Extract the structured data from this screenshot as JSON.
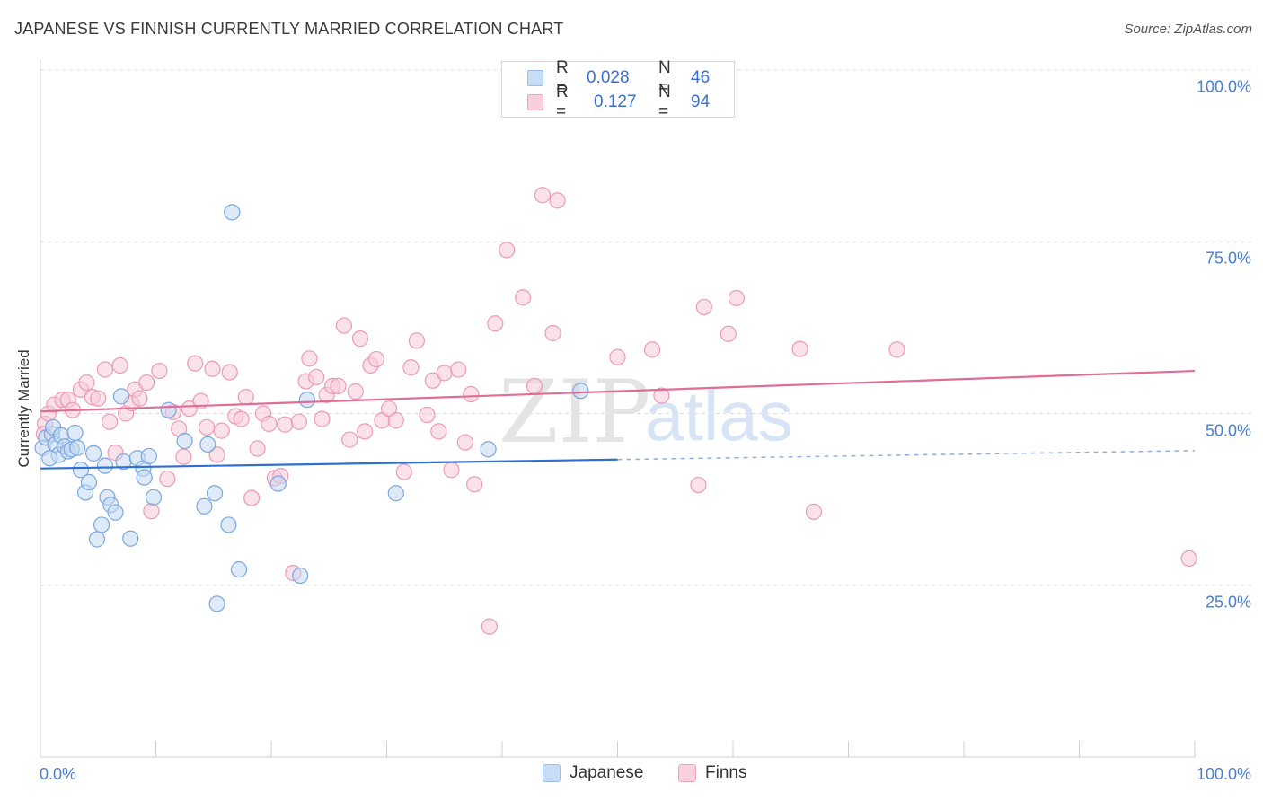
{
  "chart_data": {
    "type": "scatter",
    "title": "JAPANESE VS FINNISH CURRENTLY MARRIED CORRELATION CHART",
    "source": "Source: ZipAtlas.com",
    "xlabel": "",
    "ylabel": "Currently Married",
    "xlim": [
      0,
      100
    ],
    "ylim": [
      0,
      100
    ],
    "x_tick_labels": [
      "0.0%",
      "100.0%"
    ],
    "y_tick_labels": [
      {
        "value": 100,
        "label": "100.0%"
      },
      {
        "value": 75,
        "label": "75.0%"
      },
      {
        "value": 50,
        "label": "50.0%"
      },
      {
        "value": 25,
        "label": "25.0%"
      }
    ],
    "grid": true,
    "watermark": "ZIPatlas",
    "legend": {
      "placement": "top-center",
      "rows": [
        {
          "r_label": "R =",
          "r_value": "0.028",
          "n_label": "N =",
          "n_value": "46",
          "color": "#9bbde8",
          "fill": "#c7dcf5"
        },
        {
          "r_label": "R =",
          "r_value": "0.127",
          "n_label": "N =",
          "n_value": "94",
          "color": "#f0a3bc",
          "fill": "#f9cfdc"
        }
      ]
    },
    "series": [
      {
        "name": "Japanese",
        "color": "#7aa7e0",
        "fill": "#c3d8f3",
        "trend_color": "#2f6fd0",
        "trend": {
          "x0": 0,
          "y0": 42.0,
          "x1": 50,
          "y1": 43.3,
          "dash_to_x": 100,
          "dash_to_y": 44.6
        },
        "points": [
          [
            0.2,
            45.0
          ],
          [
            0.5,
            46.5
          ],
          [
            1.0,
            47.0
          ],
          [
            1.1,
            48.0
          ],
          [
            1.3,
            45.5
          ],
          [
            1.6,
            44.0
          ],
          [
            1.8,
            46.8
          ],
          [
            2.1,
            45.2
          ],
          [
            2.4,
            44.5
          ],
          [
            2.7,
            44.8
          ],
          [
            3.0,
            47.2
          ],
          [
            3.2,
            45.0
          ],
          [
            3.5,
            41.8
          ],
          [
            3.9,
            38.5
          ],
          [
            4.2,
            40.0
          ],
          [
            4.6,
            44.2
          ],
          [
            4.9,
            31.7
          ],
          [
            5.3,
            33.8
          ],
          [
            5.6,
            42.4
          ],
          [
            5.8,
            37.8
          ],
          [
            6.1,
            36.7
          ],
          [
            6.5,
            35.6
          ],
          [
            7.0,
            52.5
          ],
          [
            7.2,
            43.0
          ],
          [
            7.8,
            31.8
          ],
          [
            8.4,
            43.5
          ],
          [
            8.9,
            42.0
          ],
          [
            9.0,
            40.7
          ],
          [
            9.4,
            43.8
          ],
          [
            9.8,
            37.8
          ],
          [
            11.1,
            50.5
          ],
          [
            12.5,
            46.0
          ],
          [
            14.2,
            36.5
          ],
          [
            14.5,
            45.5
          ],
          [
            15.1,
            38.4
          ],
          [
            15.3,
            22.3
          ],
          [
            16.6,
            79.3
          ],
          [
            16.3,
            33.8
          ],
          [
            17.2,
            27.3
          ],
          [
            20.6,
            39.8
          ],
          [
            22.5,
            26.4
          ],
          [
            23.1,
            52.0
          ],
          [
            30.8,
            38.4
          ],
          [
            38.8,
            44.8
          ],
          [
            46.8,
            53.3
          ],
          [
            0.8,
            43.5
          ]
        ]
      },
      {
        "name": "Finns",
        "color": "#ec9ab5",
        "fill": "#f8cad9",
        "trend_color": "#e06d98",
        "trend": {
          "x0": 0,
          "y0": 50.3,
          "x1": 100,
          "y1": 56.2
        },
        "points": [
          [
            0.4,
            48.5
          ],
          [
            0.7,
            50.0
          ],
          [
            1.2,
            51.3
          ],
          [
            1.9,
            52.0
          ],
          [
            2.4,
            52.0
          ],
          [
            2.8,
            50.5
          ],
          [
            3.5,
            53.5
          ],
          [
            4.0,
            54.5
          ],
          [
            4.5,
            52.4
          ],
          [
            5.0,
            52.2
          ],
          [
            5.6,
            56.4
          ],
          [
            6.0,
            48.8
          ],
          [
            6.5,
            44.3
          ],
          [
            6.9,
            57.0
          ],
          [
            7.4,
            50.0
          ],
          [
            7.9,
            51.5
          ],
          [
            8.2,
            53.5
          ],
          [
            8.6,
            52.2
          ],
          [
            9.2,
            54.5
          ],
          [
            9.6,
            35.8
          ],
          [
            10.3,
            56.2
          ],
          [
            11.0,
            40.5
          ],
          [
            11.5,
            50.2
          ],
          [
            12.0,
            47.8
          ],
          [
            12.4,
            43.7
          ],
          [
            12.9,
            50.7
          ],
          [
            13.4,
            57.3
          ],
          [
            13.9,
            51.8
          ],
          [
            14.4,
            48.0
          ],
          [
            14.9,
            56.5
          ],
          [
            15.3,
            44.0
          ],
          [
            15.7,
            47.5
          ],
          [
            16.4,
            56.0
          ],
          [
            16.9,
            49.6
          ],
          [
            17.4,
            49.2
          ],
          [
            17.8,
            52.4
          ],
          [
            18.3,
            37.7
          ],
          [
            18.8,
            44.9
          ],
          [
            19.3,
            50.0
          ],
          [
            19.8,
            48.5
          ],
          [
            20.3,
            40.6
          ],
          [
            20.8,
            40.9
          ],
          [
            21.2,
            48.4
          ],
          [
            21.9,
            26.8
          ],
          [
            22.4,
            48.8
          ],
          [
            23.0,
            54.7
          ],
          [
            23.3,
            58.0
          ],
          [
            23.9,
            55.3
          ],
          [
            24.4,
            49.2
          ],
          [
            24.8,
            52.7
          ],
          [
            25.3,
            54.0
          ],
          [
            25.8,
            54.0
          ],
          [
            26.3,
            62.8
          ],
          [
            26.8,
            46.2
          ],
          [
            27.3,
            53.2
          ],
          [
            27.7,
            60.9
          ],
          [
            28.1,
            47.4
          ],
          [
            28.6,
            57.0
          ],
          [
            29.1,
            57.9
          ],
          [
            29.6,
            49.0
          ],
          [
            30.2,
            50.7
          ],
          [
            30.8,
            49.0
          ],
          [
            31.5,
            41.5
          ],
          [
            32.1,
            56.7
          ],
          [
            32.6,
            60.6
          ],
          [
            33.5,
            49.8
          ],
          [
            34.0,
            54.8
          ],
          [
            34.5,
            47.4
          ],
          [
            35.0,
            55.9
          ],
          [
            35.6,
            41.8
          ],
          [
            36.2,
            56.4
          ],
          [
            36.8,
            45.8
          ],
          [
            37.3,
            52.8
          ],
          [
            37.6,
            39.7
          ],
          [
            38.9,
            19.0
          ],
          [
            39.4,
            63.1
          ],
          [
            40.4,
            73.8
          ],
          [
            41.8,
            66.9
          ],
          [
            42.8,
            54.0
          ],
          [
            43.5,
            81.8
          ],
          [
            44.4,
            61.7
          ],
          [
            44.8,
            81.0
          ],
          [
            50.0,
            58.2
          ],
          [
            53.0,
            59.3
          ],
          [
            53.8,
            52.6
          ],
          [
            57.0,
            39.6
          ],
          [
            57.5,
            65.5
          ],
          [
            59.6,
            61.6
          ],
          [
            60.3,
            66.8
          ],
          [
            65.8,
            59.4
          ],
          [
            67.0,
            35.7
          ],
          [
            74.2,
            59.3
          ],
          [
            99.5,
            28.9
          ],
          [
            0.3,
            47.0
          ]
        ]
      }
    ]
  }
}
